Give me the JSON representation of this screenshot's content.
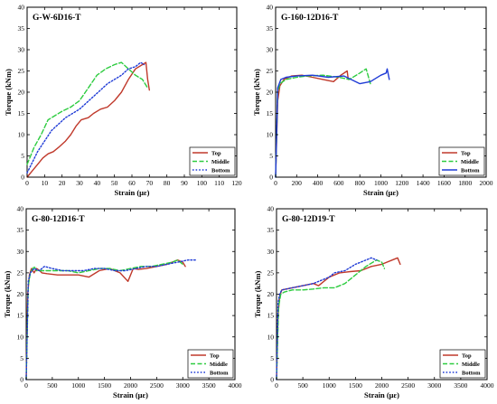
{
  "chart_data": [
    {
      "type": "line",
      "title": "G-W-6D16-T",
      "xlabel": "Strain (με)",
      "ylabel": "Torque (kNm)",
      "xlim": [
        0,
        120
      ],
      "ylim": [
        0,
        40
      ],
      "xticks": [
        0,
        10,
        20,
        30,
        40,
        50,
        60,
        70,
        80,
        90,
        100,
        110,
        120
      ],
      "yticks": [
        0,
        5,
        10,
        15,
        20,
        25,
        30,
        35,
        40
      ],
      "legend_position": "bottom-right",
      "series": [
        {
          "name": "Top",
          "color": "#c0392b",
          "dash": "solid",
          "x": [
            0,
            3,
            6,
            9,
            12,
            15,
            18,
            22,
            25,
            28,
            31,
            35,
            38,
            42,
            46,
            50,
            54,
            58,
            62,
            66,
            68,
            69,
            70
          ],
          "y": [
            0,
            1.5,
            3,
            4.5,
            5.5,
            6,
            7,
            8.5,
            10,
            12,
            13.5,
            14,
            15,
            16,
            16.5,
            18,
            20,
            23,
            25.5,
            26.5,
            27,
            23,
            20.5
          ]
        },
        {
          "name": "Middle",
          "color": "#2ecc40",
          "dash": "dash",
          "x": [
            0,
            4,
            8,
            12,
            16,
            20,
            25,
            30,
            35,
            40,
            45,
            50,
            54,
            58,
            62,
            66,
            69
          ],
          "y": [
            3,
            7,
            10,
            13.5,
            14.5,
            15.5,
            16.5,
            18,
            21,
            24,
            25.5,
            26.5,
            27,
            25.5,
            24,
            23,
            21
          ]
        },
        {
          "name": "Bottom",
          "color": "#1f3bd6",
          "dash": "dot",
          "x": [
            0,
            3,
            6,
            10,
            14,
            18,
            22,
            26,
            30,
            34,
            38,
            42,
            46,
            50,
            54,
            58,
            62,
            65,
            67
          ],
          "y": [
            1,
            3.5,
            6,
            8.5,
            11,
            12.5,
            14,
            15,
            16,
            17.5,
            19,
            20.5,
            22,
            23,
            24,
            25.5,
            26,
            27,
            26.5
          ]
        }
      ]
    },
    {
      "type": "line",
      "title": "G-160-12D16-T",
      "xlabel": "Strain (με)",
      "ylabel": "Torque (kNm)",
      "xlim": [
        0,
        2000
      ],
      "ylim": [
        0,
        40
      ],
      "xticks": [
        0,
        200,
        400,
        600,
        800,
        1000,
        1200,
        1400,
        1600,
        1800,
        2000
      ],
      "yticks": [
        0,
        5,
        10,
        15,
        20,
        25,
        30,
        35,
        40
      ],
      "legend_position": "bottom-right",
      "series": [
        {
          "name": "Top",
          "color": "#c0392b",
          "dash": "solid",
          "x": [
            0,
            20,
            40,
            80,
            150,
            250,
            350,
            450,
            550,
            620,
            680,
            690
          ],
          "y": [
            0,
            18,
            21.5,
            23,
            23.8,
            24,
            23.5,
            23,
            22.5,
            24,
            25,
            23
          ]
        },
        {
          "name": "Middle",
          "color": "#2ecc40",
          "dash": "dash",
          "x": [
            0,
            20,
            40,
            100,
            200,
            300,
            450,
            600,
            700,
            800,
            860,
            900
          ],
          "y": [
            0,
            20,
            22,
            23,
            23.5,
            23.8,
            24,
            23.5,
            23,
            24.5,
            25.5,
            22
          ]
        },
        {
          "name": "Bottom",
          "color": "#1f3bd6",
          "dash": "solid",
          "x": [
            0,
            20,
            50,
            100,
            200,
            350,
            500,
            650,
            800,
            900,
            1000,
            1050,
            1060,
            1080
          ],
          "y": [
            0,
            21,
            23,
            23.5,
            23.8,
            24,
            23.5,
            23.8,
            22,
            22.5,
            24,
            24.5,
            25.5,
            23
          ]
        }
      ]
    },
    {
      "type": "line",
      "title": "G-80-12D16-T",
      "xlabel": "Strain (με)",
      "ylabel": "Torque (kNm)",
      "xlim": [
        0,
        4000
      ],
      "ylim": [
        0,
        40
      ],
      "xticks": [
        0,
        500,
        1000,
        1500,
        2000,
        2500,
        3000,
        3500,
        4000
      ],
      "yticks": [
        0,
        5,
        10,
        15,
        20,
        25,
        30,
        35,
        40
      ],
      "legend_position": "bottom-right",
      "series": [
        {
          "name": "Top",
          "color": "#c0392b",
          "dash": "solid",
          "x": [
            0,
            30,
            60,
            100,
            150,
            200,
            260,
            300,
            400,
            600,
            800,
            1000,
            1200,
            1400,
            1600,
            1800,
            1950,
            2050,
            2150,
            2300,
            2500,
            2700,
            2900,
            3000,
            3050
          ],
          "y": [
            0,
            20,
            24.5,
            26,
            25,
            26,
            25.5,
            25,
            24.8,
            24.5,
            24.5,
            24.5,
            24,
            25.5,
            26,
            25,
            23,
            26,
            25.8,
            26,
            26.5,
            27,
            28,
            27.5,
            26.5
          ]
        },
        {
          "name": "Middle",
          "color": "#2ecc40",
          "dash": "dash",
          "x": [
            0,
            40,
            80,
            150,
            200,
            300,
            400,
            600,
            800,
            1000,
            1200,
            1400,
            1600,
            1800,
            2000,
            2200,
            2400,
            2600,
            2800,
            2900,
            3000
          ],
          "y": [
            0,
            22,
            25,
            26.5,
            25.5,
            25.5,
            25.5,
            25.5,
            25.5,
            25,
            25.5,
            26,
            26,
            25.5,
            26,
            26.5,
            26.5,
            27,
            27.5,
            28,
            27
          ]
        },
        {
          "name": "Bottom",
          "color": "#1f3bd6",
          "dash": "dot",
          "x": [
            0,
            40,
            80,
            150,
            250,
            350,
            500,
            700,
            900,
            1100,
            1300,
            1500,
            1700,
            1900,
            2100,
            2300,
            2500,
            2700,
            2900,
            3100,
            3250
          ],
          "y": [
            0,
            23,
            25,
            26,
            25.5,
            26.5,
            26,
            25.5,
            25.5,
            25.5,
            26,
            26,
            25.5,
            25.5,
            26,
            26.5,
            26.5,
            27,
            27.5,
            28,
            28
          ]
        }
      ]
    },
    {
      "type": "line",
      "title": "G-80-12D19-T",
      "xlabel": "Strain (με)",
      "ylabel": "Torque (kNm)",
      "xlim": [
        0,
        4000
      ],
      "ylim": [
        0,
        40
      ],
      "xticks": [
        0,
        500,
        1000,
        1500,
        2000,
        2500,
        3000,
        3500,
        4000
      ],
      "yticks": [
        0,
        5,
        10,
        15,
        20,
        25,
        30,
        35,
        40
      ],
      "legend_position": "bottom-right",
      "series": [
        {
          "name": "Top",
          "color": "#c0392b",
          "dash": "solid",
          "x": [
            0,
            30,
            60,
            100,
            300,
            500,
            700,
            800,
            900,
            1000,
            1100,
            1200,
            1400,
            1600,
            1800,
            2000,
            2200,
            2300,
            2350
          ],
          "y": [
            0,
            15,
            19.5,
            21,
            21.5,
            22,
            22.5,
            22,
            23,
            24,
            24.5,
            25,
            25.3,
            25.5,
            26.5,
            27,
            28,
            28.5,
            27
          ]
        },
        {
          "name": "Middle",
          "color": "#2ecc40",
          "dash": "dash",
          "x": [
            0,
            40,
            80,
            150,
            300,
            500,
            700,
            900,
            1100,
            1300,
            1500,
            1700,
            1900,
            2000,
            2050
          ],
          "y": [
            0,
            17,
            20,
            20.5,
            21,
            21,
            21.2,
            21.5,
            21.5,
            22.5,
            24.5,
            26.5,
            28,
            27.5,
            26
          ]
        },
        {
          "name": "Bottom",
          "color": "#1f3bd6",
          "dash": "dot",
          "x": [
            0,
            30,
            60,
            100,
            300,
            500,
            700,
            900,
            1000,
            1100,
            1300,
            1500,
            1700,
            1800,
            1900
          ],
          "y": [
            0,
            18,
            20,
            21,
            21.5,
            22,
            22.5,
            23.5,
            24,
            25,
            25.5,
            27,
            28,
            28.5,
            28
          ]
        }
      ]
    }
  ]
}
